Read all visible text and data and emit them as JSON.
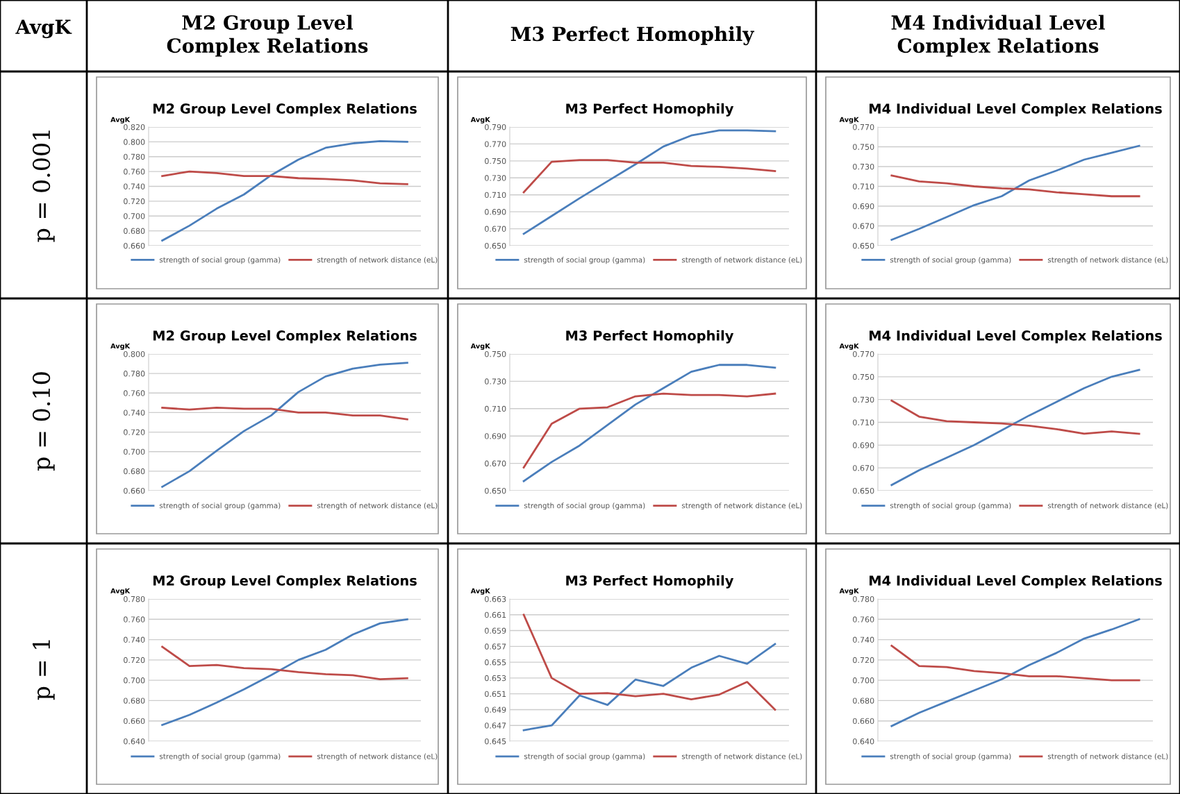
{
  "chart_data": [
    {
      "type": "other",
      "annotations": [
        "AvgK",
        "M2 Group Level\nComplex Relations",
        "M3 Perfect Homophily",
        "M4 Individual Level\nComplex Relations",
        "p = 0.001",
        "p = 0.10",
        "p = 1"
      ]
    },
    {
      "type": "line",
      "title": "M2 Group Level Complex Relations",
      "ylabel": "AvgK",
      "categories": [
        null,
        null,
        null,
        null,
        null,
        null,
        null,
        null,
        null,
        null
      ],
      "ylim": [
        0.66,
        0.82
      ],
      "yticks": [
        {
          "value": 0.66,
          "label": "0.660"
        },
        {
          "value": 0.68,
          "label": "0.680"
        },
        {
          "value": 0.7,
          "label": "0.700"
        },
        {
          "value": 0.72,
          "label": "0.720"
        },
        {
          "value": 0.74,
          "label": "0.740"
        },
        {
          "value": 0.76,
          "label": "0.760"
        },
        {
          "value": 0.78,
          "label": "0.780"
        },
        {
          "value": 0.8,
          "label": "0.800"
        },
        {
          "value": 0.82,
          "label": "0.820"
        }
      ],
      "grid": "y",
      "legend": "bottom",
      "series": [
        {
          "name": "strength of social group (gamma)",
          "color": "#4a7ebb",
          "values": [
            0.667,
            0.687,
            0.71,
            0.729,
            0.755,
            0.776,
            0.792,
            0.798,
            0.801,
            0.8
          ]
        },
        {
          "name": "strength of network distance (eL)",
          "color": "#be4b48",
          "values": [
            0.754,
            0.76,
            0.758,
            0.754,
            0.754,
            0.751,
            0.75,
            0.748,
            0.744,
            0.743
          ]
        }
      ]
    },
    {
      "type": "line",
      "title": "M3 Perfect Homophily",
      "ylabel": "AvgK",
      "categories": [
        null,
        null,
        null,
        null,
        null,
        null,
        null,
        null,
        null,
        null
      ],
      "ylim": [
        0.65,
        0.79
      ],
      "yticks": [
        {
          "value": 0.65,
          "label": "0.650"
        },
        {
          "value": 0.67,
          "label": "0.670"
        },
        {
          "value": 0.69,
          "label": "0.690"
        },
        {
          "value": 0.71,
          "label": "0.710"
        },
        {
          "value": 0.73,
          "label": "0.730"
        },
        {
          "value": 0.75,
          "label": "0.750"
        },
        {
          "value": 0.77,
          "label": "0.770"
        },
        {
          "value": 0.79,
          "label": "0.790"
        }
      ],
      "grid": "y",
      "legend": "bottom",
      "series": [
        {
          "name": "strength of social group (gamma)",
          "color": "#4a7ebb",
          "values": [
            0.664,
            0.685,
            0.706,
            0.726,
            0.746,
            0.767,
            0.78,
            0.786,
            0.786,
            0.785
          ]
        },
        {
          "name": "strength of network distance (eL)",
          "color": "#be4b48",
          "values": [
            0.713,
            0.749,
            0.751,
            0.751,
            0.748,
            0.748,
            0.744,
            0.743,
            0.741,
            0.738
          ]
        }
      ]
    },
    {
      "type": "line",
      "title": "M4 Individual Level Complex Relations",
      "ylabel": "AvgK",
      "categories": [
        null,
        null,
        null,
        null,
        null,
        null,
        null,
        null,
        null,
        null
      ],
      "ylim": [
        0.65,
        0.77
      ],
      "yticks": [
        {
          "value": 0.65,
          "label": "0.650"
        },
        {
          "value": 0.67,
          "label": "0.670"
        },
        {
          "value": 0.69,
          "label": "0.690"
        },
        {
          "value": 0.71,
          "label": "0.710"
        },
        {
          "value": 0.73,
          "label": "0.730"
        },
        {
          "value": 0.75,
          "label": "0.750"
        },
        {
          "value": 0.77,
          "label": "0.770"
        }
      ],
      "grid": "y",
      "legend": "bottom",
      "series": [
        {
          "name": "strength of social group (gamma)",
          "color": "#4a7ebb",
          "values": [
            0.656,
            0.667,
            0.679,
            0.691,
            0.7,
            0.716,
            0.726,
            0.737,
            0.744,
            0.751
          ]
        },
        {
          "name": "strength of network distance (eL)",
          "color": "#be4b48",
          "values": [
            0.721,
            0.715,
            0.713,
            0.71,
            0.708,
            0.707,
            0.704,
            0.702,
            0.7,
            0.7
          ]
        }
      ]
    },
    {
      "type": "line",
      "title": "M2 Group Level Complex Relations",
      "ylabel": "AvgK",
      "categories": [
        null,
        null,
        null,
        null,
        null,
        null,
        null,
        null,
        null,
        null
      ],
      "ylim": [
        0.66,
        0.8
      ],
      "yticks": [
        {
          "value": 0.66,
          "label": "0.660"
        },
        {
          "value": 0.68,
          "label": "0.680"
        },
        {
          "value": 0.7,
          "label": "0.700"
        },
        {
          "value": 0.72,
          "label": "0.720"
        },
        {
          "value": 0.74,
          "label": "0.740"
        },
        {
          "value": 0.76,
          "label": "0.760"
        },
        {
          "value": 0.78,
          "label": "0.780"
        },
        {
          "value": 0.8,
          "label": "0.800"
        }
      ],
      "grid": "y",
      "legend": "bottom",
      "series": [
        {
          "name": "strength of social group (gamma)",
          "color": "#4a7ebb",
          "values": [
            0.664,
            0.68,
            0.701,
            0.721,
            0.737,
            0.761,
            0.777,
            0.785,
            0.789,
            0.791
          ]
        },
        {
          "name": "strength of network distance (eL)",
          "color": "#be4b48",
          "values": [
            0.745,
            0.743,
            0.745,
            0.744,
            0.744,
            0.74,
            0.74,
            0.737,
            0.737,
            0.733
          ]
        }
      ]
    },
    {
      "type": "line",
      "title": "M3 Perfect Homophily",
      "ylabel": "AvgK",
      "categories": [
        null,
        null,
        null,
        null,
        null,
        null,
        null,
        null,
        null,
        null
      ],
      "ylim": [
        0.65,
        0.75
      ],
      "yticks": [
        {
          "value": 0.65,
          "label": "0.650"
        },
        {
          "value": 0.67,
          "label": "0.670"
        },
        {
          "value": 0.69,
          "label": "0.690"
        },
        {
          "value": 0.71,
          "label": "0.710"
        },
        {
          "value": 0.73,
          "label": "0.730"
        },
        {
          "value": 0.75,
          "label": "0.750"
        }
      ],
      "grid": "y",
      "legend": "bottom",
      "series": [
        {
          "name": "strength of social group (gamma)",
          "color": "#4a7ebb",
          "values": [
            0.657,
            0.671,
            0.683,
            0.698,
            0.713,
            0.725,
            0.737,
            0.742,
            0.742,
            0.74
          ]
        },
        {
          "name": "strength of network distance (eL)",
          "color": "#be4b48",
          "values": [
            0.667,
            0.699,
            0.71,
            0.711,
            0.719,
            0.721,
            0.72,
            0.72,
            0.719,
            0.721
          ]
        }
      ]
    },
    {
      "type": "line",
      "title": "M4 Individual Level Complex Relations",
      "ylabel": "AvgK",
      "categories": [
        null,
        null,
        null,
        null,
        null,
        null,
        null,
        null,
        null,
        null
      ],
      "ylim": [
        0.65,
        0.77
      ],
      "yticks": [
        {
          "value": 0.65,
          "label": "0.650"
        },
        {
          "value": 0.67,
          "label": "0.670"
        },
        {
          "value": 0.69,
          "label": "0.690"
        },
        {
          "value": 0.71,
          "label": "0.710"
        },
        {
          "value": 0.73,
          "label": "0.730"
        },
        {
          "value": 0.75,
          "label": "0.750"
        },
        {
          "value": 0.77,
          "label": "0.770"
        }
      ],
      "grid": "y",
      "legend": "bottom",
      "series": [
        {
          "name": "strength of social group (gamma)",
          "color": "#4a7ebb",
          "values": [
            0.655,
            0.668,
            0.679,
            0.69,
            0.703,
            0.716,
            0.728,
            0.74,
            0.75,
            0.756
          ]
        },
        {
          "name": "strength of network distance (eL)",
          "color": "#be4b48",
          "values": [
            0.729,
            0.715,
            0.711,
            0.71,
            0.709,
            0.707,
            0.704,
            0.7,
            0.702,
            0.7
          ]
        }
      ]
    },
    {
      "type": "line",
      "title": "M2 Group Level Complex Relations",
      "ylabel": "AvgK",
      "categories": [
        null,
        null,
        null,
        null,
        null,
        null,
        null,
        null,
        null,
        null
      ],
      "ylim": [
        0.64,
        0.78
      ],
      "yticks": [
        {
          "value": 0.64,
          "label": "0.640"
        },
        {
          "value": 0.66,
          "label": "0.660"
        },
        {
          "value": 0.68,
          "label": "0.680"
        },
        {
          "value": 0.7,
          "label": "0.700"
        },
        {
          "value": 0.72,
          "label": "0.720"
        },
        {
          "value": 0.74,
          "label": "0.740"
        },
        {
          "value": 0.76,
          "label": "0.760"
        },
        {
          "value": 0.78,
          "label": "0.780"
        }
      ],
      "grid": "y",
      "legend": "bottom",
      "series": [
        {
          "name": "strength of social group (gamma)",
          "color": "#4a7ebb",
          "values": [
            0.656,
            0.666,
            0.678,
            0.691,
            0.705,
            0.72,
            0.73,
            0.745,
            0.756,
            0.76
          ]
        },
        {
          "name": "strength of network distance (eL)",
          "color": "#be4b48",
          "values": [
            0.733,
            0.714,
            0.715,
            0.712,
            0.711,
            0.708,
            0.706,
            0.705,
            0.701,
            0.702
          ]
        }
      ]
    },
    {
      "type": "line",
      "title": "M3 Perfect Homophily",
      "ylabel": "AvgK",
      "categories": [
        null,
        null,
        null,
        null,
        null,
        null,
        null,
        null,
        null,
        null
      ],
      "ylim": [
        0.645,
        0.663
      ],
      "yticks": [
        {
          "value": 0.645,
          "label": "0.645"
        },
        {
          "value": 0.647,
          "label": "0.647"
        },
        {
          "value": 0.649,
          "label": "0.649"
        },
        {
          "value": 0.651,
          "label": "0.651"
        },
        {
          "value": 0.653,
          "label": "0.653"
        },
        {
          "value": 0.655,
          "label": "0.655"
        },
        {
          "value": 0.657,
          "label": "0.657"
        },
        {
          "value": 0.659,
          "label": "0.659"
        },
        {
          "value": 0.661,
          "label": "0.661"
        },
        {
          "value": 0.663,
          "label": "0.663"
        }
      ],
      "grid": "y",
      "legend": "bottom",
      "series": [
        {
          "name": "strength of social group (gamma)",
          "color": "#4a7ebb",
          "values": [
            0.6464,
            0.647,
            0.6508,
            0.6496,
            0.6528,
            0.652,
            0.6543,
            0.6558,
            0.6548,
            0.6573
          ]
        },
        {
          "name": "strength of network distance (eL)",
          "color": "#be4b48",
          "values": [
            0.661,
            0.653,
            0.651,
            0.6511,
            0.6507,
            0.651,
            0.6503,
            0.6509,
            0.6525,
            0.649
          ]
        }
      ]
    },
    {
      "type": "line",
      "title": "M4 Individual Level Complex Relations",
      "ylabel": "AvgK",
      "categories": [
        null,
        null,
        null,
        null,
        null,
        null,
        null,
        null,
        null,
        null
      ],
      "ylim": [
        0.64,
        0.78
      ],
      "yticks": [
        {
          "value": 0.64,
          "label": "0.640"
        },
        {
          "value": 0.66,
          "label": "0.660"
        },
        {
          "value": 0.68,
          "label": "0.680"
        },
        {
          "value": 0.7,
          "label": "0.700"
        },
        {
          "value": 0.72,
          "label": "0.720"
        },
        {
          "value": 0.74,
          "label": "0.740"
        },
        {
          "value": 0.76,
          "label": "0.760"
        },
        {
          "value": 0.78,
          "label": "0.780"
        }
      ],
      "grid": "y",
      "legend": "bottom",
      "series": [
        {
          "name": "strength of social group (gamma)",
          "color": "#4a7ebb",
          "values": [
            0.655,
            0.668,
            0.679,
            0.69,
            0.701,
            0.715,
            0.727,
            0.741,
            0.75,
            0.76
          ]
        },
        {
          "name": "strength of network distance (eL)",
          "color": "#be4b48",
          "values": [
            0.734,
            0.714,
            0.713,
            0.709,
            0.707,
            0.704,
            0.704,
            0.702,
            0.7,
            0.7
          ]
        }
      ]
    }
  ]
}
